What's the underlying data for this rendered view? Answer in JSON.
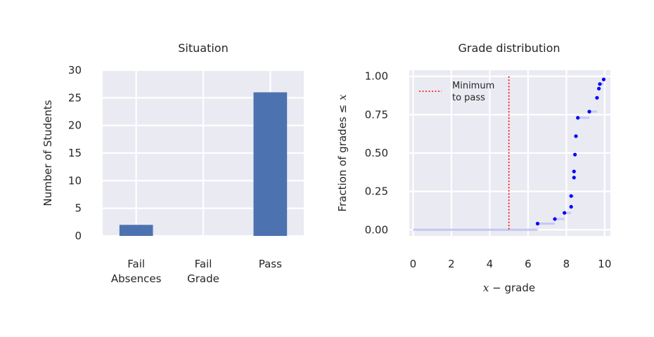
{
  "chart_data": [
    {
      "type": "bar",
      "title": "Situation",
      "xlabel": "",
      "ylabel": "Number of Students",
      "categories": [
        [
          "Fail",
          "Absences"
        ],
        [
          "Fail",
          "Grade"
        ],
        [
          "Pass"
        ]
      ],
      "values": [
        2,
        0,
        26
      ],
      "ylim": [
        0,
        30
      ],
      "yticks": [
        0,
        5,
        10,
        15,
        20,
        25,
        30
      ],
      "bar_color": "#4c72b0",
      "grid": true
    },
    {
      "type": "step",
      "title": "Grade distribution",
      "xlabel": {
        "var": "x",
        "rest": " − grade"
      },
      "ylabel": {
        "main": "Fraction of grades ≤",
        "var": "x"
      },
      "xlim": [
        -0.2,
        10.3
      ],
      "ylim": [
        -0.04,
        1.04
      ],
      "xticks": [
        0,
        2,
        4,
        6,
        8,
        10
      ],
      "yticks": [
        "0.00",
        "0.25",
        "0.50",
        "0.75",
        "1.00"
      ],
      "grid": true,
      "legend": {
        "position": "top-left",
        "label_lines": [
          "Minimum",
          "to pass"
        ]
      },
      "threshold_x": 5,
      "threshold_color": "#ff0000",
      "step_color": "#c5c8f5",
      "point_color": "#0000ff",
      "points": [
        {
          "x": 6.5,
          "y": 0.04
        },
        {
          "x": 7.4,
          "y": 0.07
        },
        {
          "x": 7.9,
          "y": 0.11
        },
        {
          "x": 8.25,
          "y": 0.15
        },
        {
          "x": 8.25,
          "y": 0.22
        },
        {
          "x": 8.4,
          "y": 0.34
        },
        {
          "x": 8.4,
          "y": 0.38
        },
        {
          "x": 8.45,
          "y": 0.49
        },
        {
          "x": 8.5,
          "y": 0.61
        },
        {
          "x": 8.6,
          "y": 0.73
        },
        {
          "x": 9.2,
          "y": 0.77
        },
        {
          "x": 9.6,
          "y": 0.86
        },
        {
          "x": 9.7,
          "y": 0.92
        },
        {
          "x": 9.75,
          "y": 0.95
        },
        {
          "x": 9.95,
          "y": 0.98
        }
      ]
    }
  ]
}
